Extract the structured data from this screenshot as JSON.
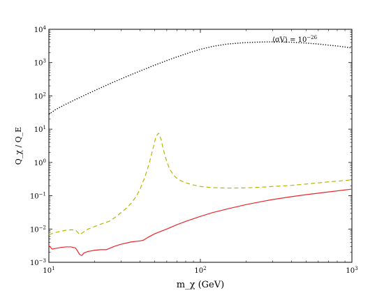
{
  "chart_data": {
    "type": "line",
    "title": "",
    "xlabel": "m_χ (GeV)",
    "ylabel": "Q_χ / Q_E",
    "xscale": "log",
    "yscale": "log",
    "xlim": [
      10,
      1000
    ],
    "ylim": [
      0.001,
      10000
    ],
    "x_ticks": [
      {
        "value": 10,
        "mantissa": "10",
        "exponent": "1"
      },
      {
        "value": 100,
        "mantissa": "10",
        "exponent": "2"
      },
      {
        "value": 1000,
        "mantissa": "10",
        "exponent": "3"
      }
    ],
    "y_ticks": [
      {
        "value": 0.001,
        "mantissa": "10",
        "exponent": "−3"
      },
      {
        "value": 0.01,
        "mantissa": "10",
        "exponent": "−2"
      },
      {
        "value": 0.1,
        "mantissa": "10",
        "exponent": "−1"
      },
      {
        "value": 1,
        "mantissa": "10",
        "exponent": "0"
      },
      {
        "value": 10,
        "mantissa": "10",
        "exponent": "1"
      },
      {
        "value": 100,
        "mantissa": "10",
        "exponent": "2"
      },
      {
        "value": 1000,
        "mantissa": "10",
        "exponent": "3"
      },
      {
        "value": 10000,
        "mantissa": "10",
        "exponent": "4"
      }
    ],
    "annotation": {
      "text": "⟨σV⟩ = 10",
      "exponent": "−26"
    },
    "grid": false,
    "series": [
      {
        "style": "dotted",
        "color": "#000000",
        "x": [
          10,
          11,
          12.5,
          15,
          18,
          22,
          27,
          33,
          40,
          50,
          60,
          70,
          85,
          100,
          120,
          150,
          200,
          250,
          300,
          400,
          500,
          600,
          700,
          800,
          1000
        ],
        "y": [
          28,
          38,
          52,
          78,
          115,
          175,
          265,
          390,
          560,
          840,
          1150,
          1480,
          2000,
          2500,
          3050,
          3600,
          4000,
          4150,
          4200,
          4100,
          3850,
          3600,
          3350,
          3150,
          2750
        ]
      },
      {
        "style": "dashed",
        "color": "#b5b800",
        "x": [
          10,
          11,
          12,
          13,
          14,
          15,
          16,
          17,
          18,
          20,
          22,
          25,
          28,
          32,
          35,
          38,
          40,
          43,
          46,
          49,
          51,
          53,
          55,
          57,
          60,
          63,
          67,
          72,
          80,
          90,
          100,
          120,
          150,
          200,
          250,
          300,
          400,
          500,
          700,
          1000
        ],
        "y": [
          0.0068,
          0.0078,
          0.0086,
          0.0092,
          0.0095,
          0.0093,
          0.0068,
          0.0082,
          0.0098,
          0.0118,
          0.014,
          0.017,
          0.024,
          0.04,
          0.06,
          0.1,
          0.16,
          0.36,
          0.95,
          3.0,
          6.2,
          7.6,
          5.0,
          2.4,
          1.05,
          0.6,
          0.4,
          0.3,
          0.245,
          0.21,
          0.19,
          0.175,
          0.17,
          0.172,
          0.18,
          0.19,
          0.205,
          0.225,
          0.26,
          0.3
        ]
      },
      {
        "style": "solid",
        "color": "#e8262b",
        "x": [
          10,
          10.5,
          11,
          12,
          13,
          14,
          15,
          16,
          16.5,
          17,
          18,
          20,
          22,
          24,
          25,
          27,
          30,
          35,
          40,
          42,
          45,
          50,
          60,
          70,
          80,
          100,
          120,
          150,
          200,
          250,
          300,
          400,
          500,
          700,
          1000
        ],
        "y": [
          0.0032,
          0.0025,
          0.0026,
          0.0028,
          0.0029,
          0.0029,
          0.0027,
          0.0017,
          0.0016,
          0.0019,
          0.0021,
          0.0023,
          0.0024,
          0.0024,
          0.0026,
          0.003,
          0.0035,
          0.0041,
          0.0044,
          0.0046,
          0.0056,
          0.0072,
          0.01,
          0.0135,
          0.017,
          0.024,
          0.031,
          0.04,
          0.054,
          0.066,
          0.077,
          0.094,
          0.108,
          0.13,
          0.158
        ]
      }
    ]
  }
}
